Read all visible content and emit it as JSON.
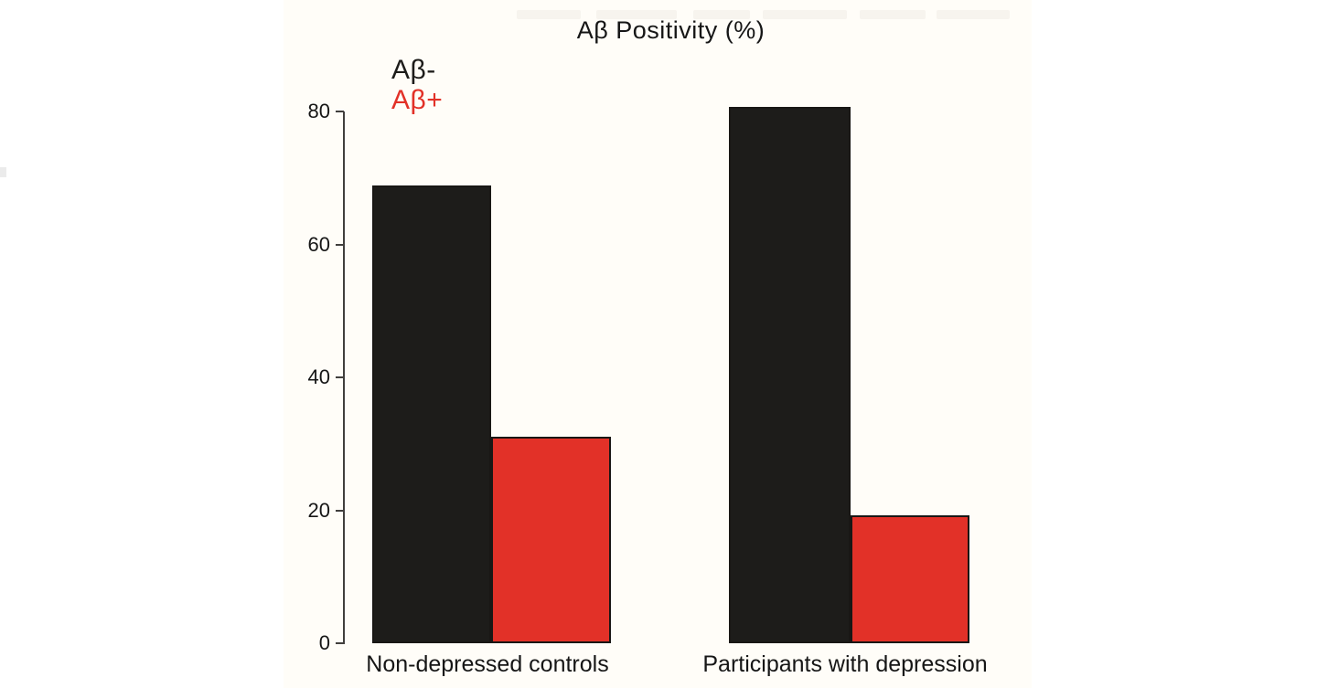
{
  "window": {
    "background": "#ffffff"
  },
  "figure": {
    "background": "#fffdf8"
  },
  "chart_data": {
    "type": "bar",
    "title": "Aβ Positivity (%)",
    "categories": [
      "Non-depressed controls",
      "Participants with depression"
    ],
    "series": [
      {
        "name": "Aβ-",
        "color": "#1d1c1a",
        "values": [
          68.9,
          80.7
        ]
      },
      {
        "name": "Aβ+",
        "color": "#e23128",
        "values": [
          31.1,
          19.3
        ]
      }
    ],
    "xlabel": "",
    "ylabel": "",
    "ylim": [
      0,
      80
    ],
    "yticks": [
      0,
      20,
      40,
      60,
      80
    ],
    "grid": false,
    "legend_position": "top-left",
    "bar_border_color": "#191715",
    "axis_color": "#413f3d",
    "text_color": "#161616"
  }
}
